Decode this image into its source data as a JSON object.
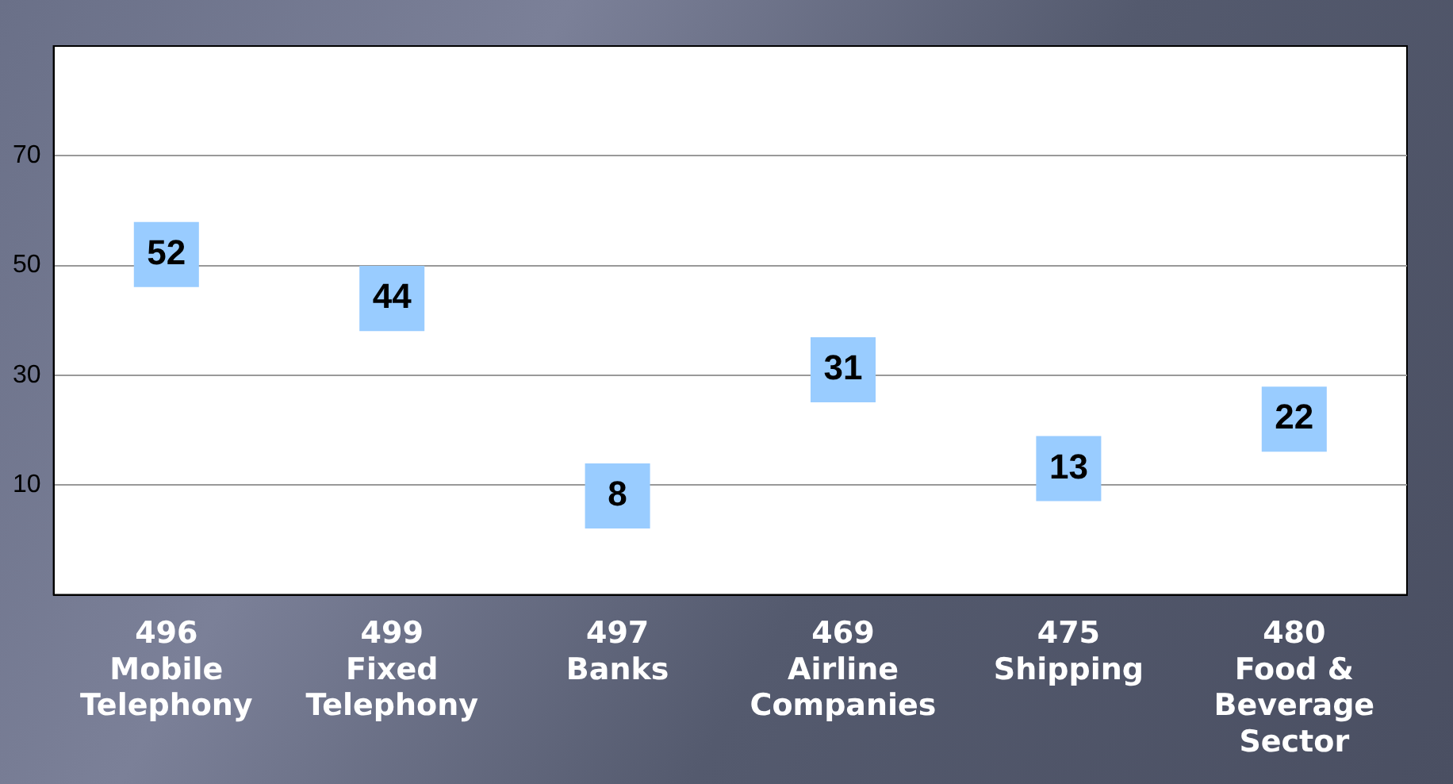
{
  "chart_data": {
    "type": "scatter",
    "categories": [
      "496\nMobile\nTelephony",
      "499\nFixed\nTelephony",
      "497\nBanks",
      "469\nAirline\nCompanies",
      "475\nShipping",
      "480\nFood &\nBeverage\nSector"
    ],
    "series": [
      {
        "color": "#99ccff",
        "values": [
          52,
          44,
          8,
          31,
          13,
          22
        ]
      }
    ],
    "ylim": [
      -10,
      90
    ],
    "yticks": [
      10,
      30,
      50,
      70
    ],
    "grid": "y",
    "marker": "square",
    "data_labels": true,
    "legend": false
  }
}
